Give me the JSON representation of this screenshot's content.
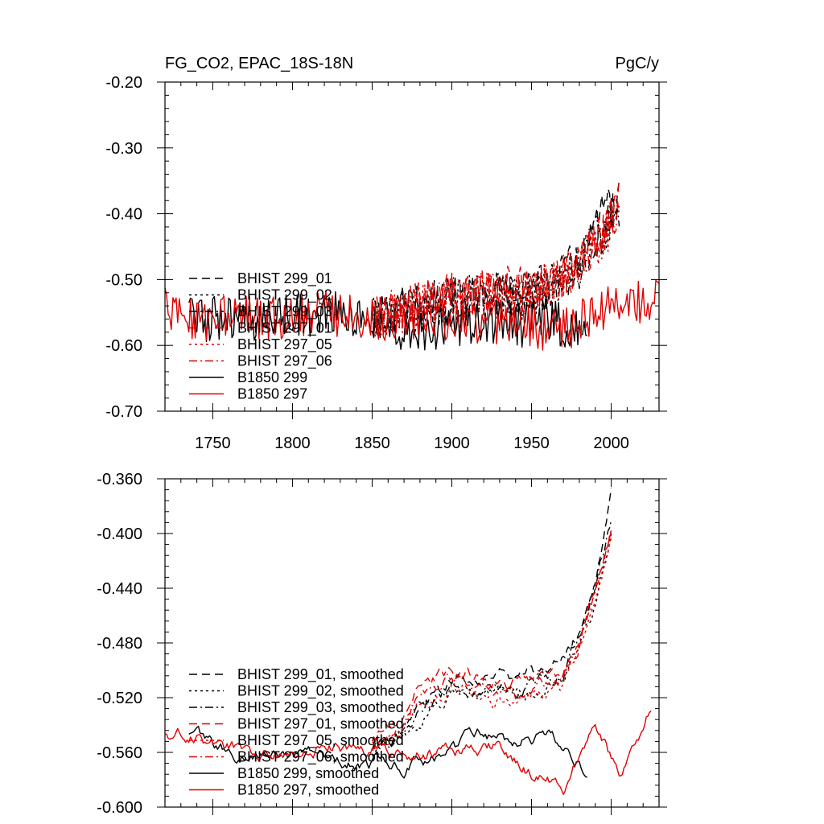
{
  "chart_data": [
    {
      "type": "line",
      "title": "FG_CO2, EPAC_18S-18N",
      "units": "PgC/y",
      "xlabel": "",
      "ylabel": "",
      "xlim": [
        1720,
        2030
      ],
      "ylim": [
        -0.7,
        -0.2
      ],
      "xticks": [
        1750,
        1800,
        1850,
        1900,
        1950,
        2000
      ],
      "xtick_labels": [
        "1750",
        "1800",
        "1850",
        "1900",
        "1950",
        "2000"
      ],
      "yticks": [
        -0.7,
        -0.6,
        -0.5,
        -0.4,
        -0.3,
        -0.2
      ],
      "ytick_labels": [
        "-0.70",
        "-0.60",
        "-0.50",
        "-0.40",
        "-0.30",
        "-0.20"
      ],
      "legend_position": "lower-left",
      "series": [
        {
          "name": "BHIST 299_01",
          "color": "#000000",
          "dash": "dash",
          "x_range": [
            1850,
            2005
          ],
          "anchors": [
            [
              1850,
              -0.56
            ],
            [
              1880,
              -0.54
            ],
            [
              1900,
              -0.53
            ],
            [
              1920,
              -0.52
            ],
            [
              1940,
              -0.52
            ],
            [
              1960,
              -0.51
            ],
            [
              1980,
              -0.47
            ],
            [
              1990,
              -0.42
            ],
            [
              2005,
              -0.37
            ]
          ]
        },
        {
          "name": "BHIST 299_02",
          "color": "#000000",
          "dash": "dot",
          "x_range": [
            1850,
            2005
          ],
          "anchors": [
            [
              1850,
              -0.56
            ],
            [
              1880,
              -0.55
            ],
            [
              1900,
              -0.54
            ],
            [
              1920,
              -0.52
            ],
            [
              1940,
              -0.53
            ],
            [
              1960,
              -0.51
            ],
            [
              1980,
              -0.48
            ],
            [
              1990,
              -0.44
            ],
            [
              2005,
              -0.39
            ]
          ]
        },
        {
          "name": "BHIST 299_03",
          "color": "#000000",
          "dash": "dashdot",
          "x_range": [
            1850,
            2005
          ],
          "anchors": [
            [
              1850,
              -0.56
            ],
            [
              1880,
              -0.54
            ],
            [
              1900,
              -0.53
            ],
            [
              1920,
              -0.53
            ],
            [
              1940,
              -0.52
            ],
            [
              1960,
              -0.52
            ],
            [
              1980,
              -0.48
            ],
            [
              1990,
              -0.44
            ],
            [
              2005,
              -0.4
            ]
          ]
        },
        {
          "name": "BHIST 297_01",
          "color": "#e00000",
          "dash": "dash",
          "x_range": [
            1850,
            2005
          ],
          "anchors": [
            [
              1850,
              -0.56
            ],
            [
              1880,
              -0.53
            ],
            [
              1900,
              -0.52
            ],
            [
              1920,
              -0.52
            ],
            [
              1940,
              -0.51
            ],
            [
              1960,
              -0.51
            ],
            [
              1980,
              -0.48
            ],
            [
              1990,
              -0.44
            ],
            [
              2005,
              -0.38
            ]
          ]
        },
        {
          "name": "BHIST 297_05",
          "color": "#e00000",
          "dash": "dot",
          "x_range": [
            1850,
            2005
          ],
          "anchors": [
            [
              1850,
              -0.56
            ],
            [
              1880,
              -0.54
            ],
            [
              1900,
              -0.53
            ],
            [
              1920,
              -0.52
            ],
            [
              1940,
              -0.53
            ],
            [
              1960,
              -0.51
            ],
            [
              1980,
              -0.48
            ],
            [
              1990,
              -0.45
            ],
            [
              2005,
              -0.4
            ]
          ]
        },
        {
          "name": "BHIST 297_06",
          "color": "#e00000",
          "dash": "dashdot",
          "x_range": [
            1850,
            2005
          ],
          "anchors": [
            [
              1850,
              -0.56
            ],
            [
              1880,
              -0.53
            ],
            [
              1900,
              -0.53
            ],
            [
              1920,
              -0.52
            ],
            [
              1940,
              -0.52
            ],
            [
              1960,
              -0.51
            ],
            [
              1980,
              -0.47
            ],
            [
              1990,
              -0.44
            ],
            [
              2005,
              -0.39
            ]
          ]
        },
        {
          "name": "B1850 299",
          "color": "#000000",
          "dash": "solid",
          "x_range": [
            1735,
            1985
          ],
          "anchors": [
            [
              1735,
              -0.56
            ],
            [
              1780,
              -0.56
            ],
            [
              1820,
              -0.55
            ],
            [
              1860,
              -0.57
            ],
            [
              1900,
              -0.58
            ],
            [
              1920,
              -0.56
            ],
            [
              1940,
              -0.57
            ],
            [
              1960,
              -0.56
            ],
            [
              1985,
              -0.58
            ]
          ]
        },
        {
          "name": "B1850 297",
          "color": "#e00000",
          "dash": "solid",
          "x_range": [
            1720,
            2030
          ],
          "anchors": [
            [
              1720,
              -0.54
            ],
            [
              1740,
              -0.56
            ],
            [
              1780,
              -0.56
            ],
            [
              1820,
              -0.55
            ],
            [
              1860,
              -0.56
            ],
            [
              1900,
              -0.56
            ],
            [
              1940,
              -0.57
            ],
            [
              1970,
              -0.58
            ],
            [
              1990,
              -0.55
            ],
            [
              2030,
              -0.53
            ]
          ]
        }
      ]
    },
    {
      "type": "line",
      "title": "",
      "xlabel": "",
      "ylabel": "",
      "xlim": [
        1720,
        2030
      ],
      "ylim": [
        -0.6,
        -0.36
      ],
      "xticks": [
        1750,
        1800,
        1850,
        1900,
        1950,
        2000
      ],
      "xtick_labels": [],
      "yticks": [
        -0.6,
        -0.56,
        -0.52,
        -0.48,
        -0.44,
        -0.4,
        -0.36
      ],
      "ytick_labels": [
        "-0.600",
        "-0.560",
        "-0.520",
        "-0.480",
        "-0.440",
        "-0.400",
        "-0.360"
      ],
      "legend_position": "lower-left",
      "series": [
        {
          "name": "BHIST 299_01, smoothed",
          "color": "#000000",
          "dash": "dash",
          "x_range": [
            1850,
            2000
          ],
          "anchors": [
            [
              1850,
              -0.555
            ],
            [
              1870,
              -0.545
            ],
            [
              1880,
              -0.525
            ],
            [
              1900,
              -0.51
            ],
            [
              1920,
              -0.505
            ],
            [
              1940,
              -0.505
            ],
            [
              1960,
              -0.5
            ],
            [
              1970,
              -0.49
            ],
            [
              1980,
              -0.47
            ],
            [
              1990,
              -0.43
            ],
            [
              2000,
              -0.365
            ]
          ]
        },
        {
          "name": "BHIST 299_02, smoothed",
          "color": "#000000",
          "dash": "dot",
          "x_range": [
            1850,
            2000
          ],
          "anchors": [
            [
              1850,
              -0.56
            ],
            [
              1870,
              -0.55
            ],
            [
              1880,
              -0.54
            ],
            [
              1900,
              -0.52
            ],
            [
              1920,
              -0.515
            ],
            [
              1940,
              -0.52
            ],
            [
              1960,
              -0.51
            ],
            [
              1970,
              -0.5
            ],
            [
              1980,
              -0.475
            ],
            [
              1990,
              -0.45
            ],
            [
              2000,
              -0.4
            ]
          ]
        },
        {
          "name": "BHIST 299_03, smoothed",
          "color": "#000000",
          "dash": "dashdot",
          "x_range": [
            1850,
            2000
          ],
          "anchors": [
            [
              1850,
              -0.555
            ],
            [
              1870,
              -0.55
            ],
            [
              1880,
              -0.53
            ],
            [
              1900,
              -0.515
            ],
            [
              1920,
              -0.515
            ],
            [
              1940,
              -0.515
            ],
            [
              1960,
              -0.505
            ],
            [
              1970,
              -0.5
            ],
            [
              1980,
              -0.47
            ],
            [
              1990,
              -0.44
            ],
            [
              2000,
              -0.39
            ]
          ]
        },
        {
          "name": "BHIST 297_01, smoothed",
          "color": "#e00000",
          "dash": "dash",
          "x_range": [
            1850,
            2000
          ],
          "anchors": [
            [
              1850,
              -0.55
            ],
            [
              1870,
              -0.535
            ],
            [
              1880,
              -0.51
            ],
            [
              1900,
              -0.5
            ],
            [
              1920,
              -0.505
            ],
            [
              1940,
              -0.51
            ],
            [
              1960,
              -0.505
            ],
            [
              1970,
              -0.505
            ],
            [
              1980,
              -0.48
            ],
            [
              1990,
              -0.44
            ],
            [
              2000,
              -0.395
            ]
          ]
        },
        {
          "name": "BHIST 297_05, smoothed",
          "color": "#e00000",
          "dash": "dot",
          "x_range": [
            1850,
            2000
          ],
          "anchors": [
            [
              1850,
              -0.555
            ],
            [
              1870,
              -0.545
            ],
            [
              1880,
              -0.525
            ],
            [
              1900,
              -0.51
            ],
            [
              1920,
              -0.52
            ],
            [
              1940,
              -0.525
            ],
            [
              1960,
              -0.515
            ],
            [
              1970,
              -0.51
            ],
            [
              1980,
              -0.485
            ],
            [
              1990,
              -0.45
            ],
            [
              2000,
              -0.405
            ]
          ]
        },
        {
          "name": "BHIST 297_06, smoothed",
          "color": "#e00000",
          "dash": "dashdot",
          "x_range": [
            1850,
            2000
          ],
          "anchors": [
            [
              1850,
              -0.55
            ],
            [
              1870,
              -0.54
            ],
            [
              1880,
              -0.515
            ],
            [
              1900,
              -0.505
            ],
            [
              1920,
              -0.51
            ],
            [
              1940,
              -0.52
            ],
            [
              1960,
              -0.51
            ],
            [
              1970,
              -0.51
            ],
            [
              1980,
              -0.48
            ],
            [
              1990,
              -0.445
            ],
            [
              2000,
              -0.4
            ]
          ]
        },
        {
          "name": "B1850 299, smoothed",
          "color": "#000000",
          "dash": "solid",
          "x_range": [
            1735,
            1985
          ],
          "anchors": [
            [
              1735,
              -0.545
            ],
            [
              1760,
              -0.56
            ],
            [
              1800,
              -0.56
            ],
            [
              1840,
              -0.565
            ],
            [
              1870,
              -0.57
            ],
            [
              1900,
              -0.56
            ],
            [
              1920,
              -0.545
            ],
            [
              1940,
              -0.555
            ],
            [
              1960,
              -0.545
            ],
            [
              1985,
              -0.575
            ]
          ]
        },
        {
          "name": "B1850 297, smoothed",
          "color": "#e00000",
          "dash": "solid",
          "x_range": [
            1720,
            2025
          ],
          "anchors": [
            [
              1720,
              -0.545
            ],
            [
              1740,
              -0.55
            ],
            [
              1780,
              -0.565
            ],
            [
              1820,
              -0.555
            ],
            [
              1860,
              -0.56
            ],
            [
              1900,
              -0.56
            ],
            [
              1930,
              -0.555
            ],
            [
              1950,
              -0.575
            ],
            [
              1970,
              -0.585
            ],
            [
              1990,
              -0.535
            ],
            [
              2005,
              -0.58
            ],
            [
              2025,
              -0.525
            ]
          ]
        }
      ]
    }
  ]
}
